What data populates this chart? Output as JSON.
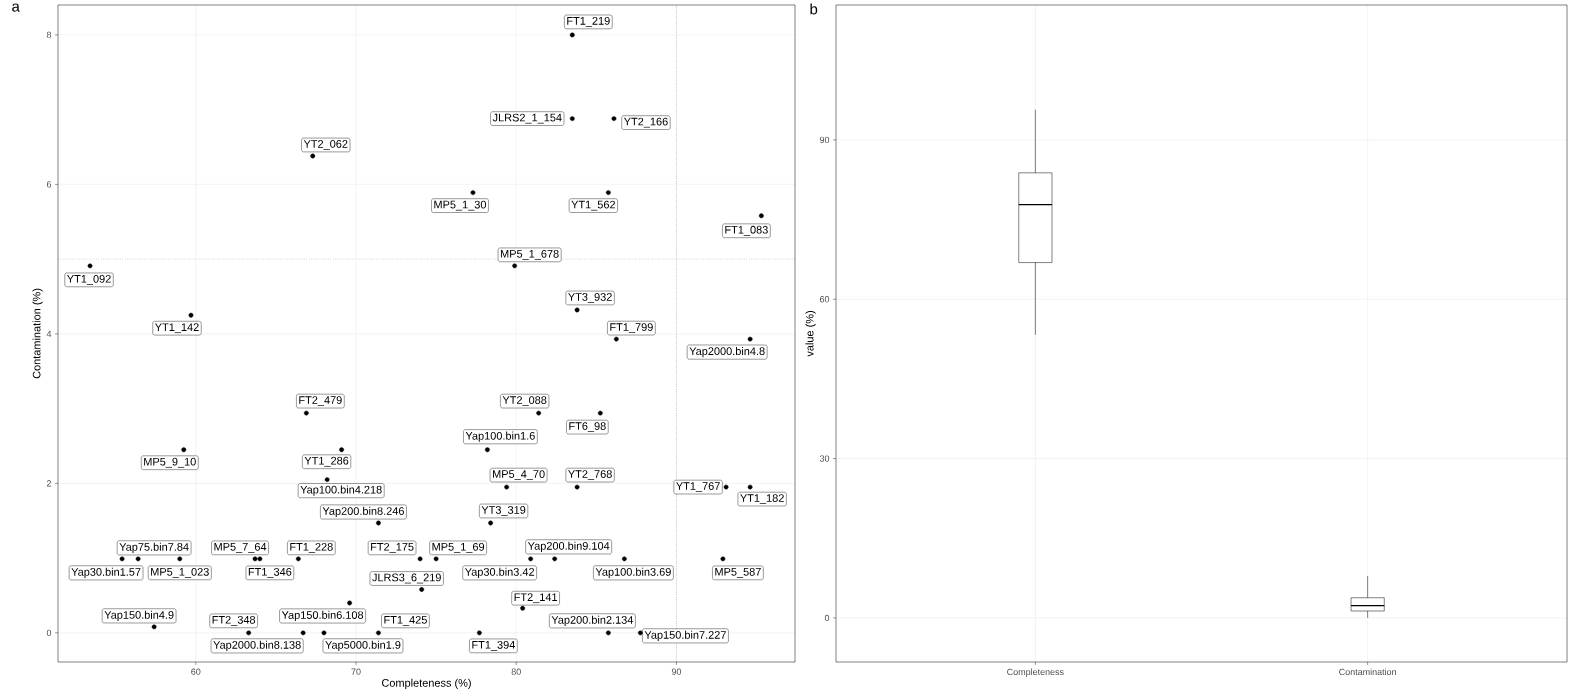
{
  "chart_data": [
    {
      "type": "scatter",
      "title": "a",
      "xlabel": "Completeness (%)",
      "ylabel": "Contamination (%)",
      "color": "#000000",
      "marker": "circle",
      "grid": true,
      "xlim": [
        51.4,
        97.4
      ],
      "ylim": [
        -0.39,
        8.4
      ],
      "xticks": [
        60,
        70,
        80,
        90
      ],
      "yticks": [
        0,
        2,
        4,
        6,
        8
      ],
      "x": [
        83.5,
        83.5,
        86.1,
        67.3,
        77.3,
        85.75,
        95.3,
        79.9,
        53.4,
        59.7,
        83.8,
        86.25,
        94.6,
        66.9,
        81.4,
        85.25,
        59.25,
        69.1,
        78.2,
        68.2,
        79.4,
        83.8,
        93.1,
        94.6,
        71.4,
        78.4,
        56.4,
        55.4,
        59.0,
        63.7,
        64.0,
        66.4,
        74.0,
        75.0,
        80.9,
        82.4,
        86.75,
        92.9,
        74.1,
        69.6,
        80.4,
        57.4,
        63.3,
        66.7,
        68.0,
        71.4,
        77.7,
        85.75,
        87.75
      ],
      "values": [
        8.0,
        6.88,
        6.88,
        6.38,
        5.89,
        5.89,
        5.58,
        4.91,
        4.91,
        4.25,
        4.32,
        3.93,
        3.93,
        2.94,
        2.94,
        2.94,
        2.45,
        2.45,
        2.45,
        2.05,
        1.95,
        1.95,
        1.95,
        1.95,
        1.47,
        1.47,
        0.99,
        0.99,
        0.99,
        0.99,
        0.99,
        0.99,
        0.99,
        0.99,
        0.99,
        0.99,
        0.99,
        0.99,
        0.58,
        0.4,
        0.33,
        0.08,
        0,
        0,
        0,
        0,
        0,
        0,
        0
      ],
      "ref_lines": [
        {
          "axis": "x",
          "value": 90,
          "line_style": "dotted"
        },
        {
          "axis": "y",
          "value": 5,
          "line_style": "dotted"
        }
      ],
      "annotations": [
        {
          "text": "FT1_219",
          "x": 83.5,
          "y": 8.0
        },
        {
          "text": "JLRS2_1_154",
          "x": 83.5,
          "y": 6.88
        },
        {
          "text": "YT2_166",
          "x": 86.1,
          "y": 6.88
        },
        {
          "text": "YT2_062",
          "x": 67.3,
          "y": 6.38
        },
        {
          "text": "MP5_1_30",
          "x": 77.3,
          "y": 5.89
        },
        {
          "text": "YT1_562",
          "x": 85.75,
          "y": 5.89
        },
        {
          "text": "FT1_083",
          "x": 95.3,
          "y": 5.58
        },
        {
          "text": "MP5_1_678",
          "x": 79.9,
          "y": 4.91
        },
        {
          "text": "YT1_092",
          "x": 53.4,
          "y": 4.91
        },
        {
          "text": "YT1_142",
          "x": 59.7,
          "y": 4.25
        },
        {
          "text": "YT3_932",
          "x": 83.8,
          "y": 4.32
        },
        {
          "text": "FT1_799",
          "x": 86.25,
          "y": 3.93
        },
        {
          "text": "Yap2000.bin4.8",
          "x": 94.6,
          "y": 3.93
        },
        {
          "text": "FT2_479",
          "x": 66.9,
          "y": 2.94
        },
        {
          "text": "YT2_088",
          "x": 81.4,
          "y": 2.94
        },
        {
          "text": "FT6_98",
          "x": 85.25,
          "y": 2.94
        },
        {
          "text": "MP5_9_10",
          "x": 59.25,
          "y": 2.45
        },
        {
          "text": "YT1_286",
          "x": 69.1,
          "y": 2.45
        },
        {
          "text": "Yap100.bin1.6",
          "x": 78.2,
          "y": 2.45
        },
        {
          "text": "Yap100.bin4.218",
          "x": 68.2,
          "y": 2.05
        },
        {
          "text": "MP5_4_70",
          "x": 79.4,
          "y": 1.95
        },
        {
          "text": "YT2_768",
          "x": 83.8,
          "y": 1.95
        },
        {
          "text": "YT1_767",
          "x": 93.1,
          "y": 1.95
        },
        {
          "text": "YT1_182",
          "x": 94.6,
          "y": 1.95
        },
        {
          "text": "Yap200.bin8.246",
          "x": 71.4,
          "y": 1.47
        },
        {
          "text": "YT3_319",
          "x": 78.4,
          "y": 1.47
        },
        {
          "text": "Yap75.bin7.84",
          "x": 56.4,
          "y": 0.99
        },
        {
          "text": "Yap30.bin1.57",
          "x": 55.4,
          "y": 0.99
        },
        {
          "text": "MP5_1_023",
          "x": 59.0,
          "y": 0.99
        },
        {
          "text": "MP5_7_64",
          "x": 63.7,
          "y": 0.99
        },
        {
          "text": "FT1_346",
          "x": 64.0,
          "y": 0.99
        },
        {
          "text": "FT1_228",
          "x": 66.4,
          "y": 0.99
        },
        {
          "text": "FT2_175",
          "x": 74.0,
          "y": 0.99
        },
        {
          "text": "MP5_1_69",
          "x": 75.0,
          "y": 0.99
        },
        {
          "text": "Yap30.bin3.42",
          "x": 80.9,
          "y": 0.99
        },
        {
          "text": "Yap200.bin9.104",
          "x": 82.4,
          "y": 0.99
        },
        {
          "text": "Yap100.bin3.69",
          "x": 86.75,
          "y": 0.99
        },
        {
          "text": "MP5_587",
          "x": 92.9,
          "y": 0.99
        },
        {
          "text": "JLRS3_6_219",
          "x": 74.1,
          "y": 0.58
        },
        {
          "text": "Yap150.bin6.108",
          "x": 69.6,
          "y": 0.4
        },
        {
          "text": "FT2_141",
          "x": 80.4,
          "y": 0.33
        },
        {
          "text": "Yap150.bin4.9",
          "x": 57.4,
          "y": 0.08
        },
        {
          "text": "FT2_348",
          "x": 63.3,
          "y": 0
        },
        {
          "text": "Yap2000.bin8.138",
          "x": 66.7,
          "y": 0
        },
        {
          "text": "Yap5000.bin1.9",
          "x": 68.0,
          "y": 0
        },
        {
          "text": "FT1_425",
          "x": 71.4,
          "y": 0
        },
        {
          "text": "FT1_394",
          "x": 77.7,
          "y": 0
        },
        {
          "text": "Yap200.bin2.134",
          "x": 85.75,
          "y": 0
        },
        {
          "text": "Yap150.bin7.227",
          "x": 87.75,
          "y": 0
        }
      ]
    },
    {
      "type": "box",
      "title": "b",
      "ylabel": "value (%)",
      "grid": true,
      "categories": [
        "Completeness",
        "Contamination"
      ],
      "ylim": [
        -8.3,
        115.4
      ],
      "yticks": [
        0,
        30,
        60,
        90
      ],
      "boxes": [
        {
          "low": 53.3,
          "q1": 66.9,
          "median": 77.8,
          "q3": 83.8,
          "high": 95.7
        },
        {
          "low": 0,
          "q1": 1.3,
          "median": 2.3,
          "q3": 3.8,
          "high": 7.9
        }
      ]
    }
  ]
}
